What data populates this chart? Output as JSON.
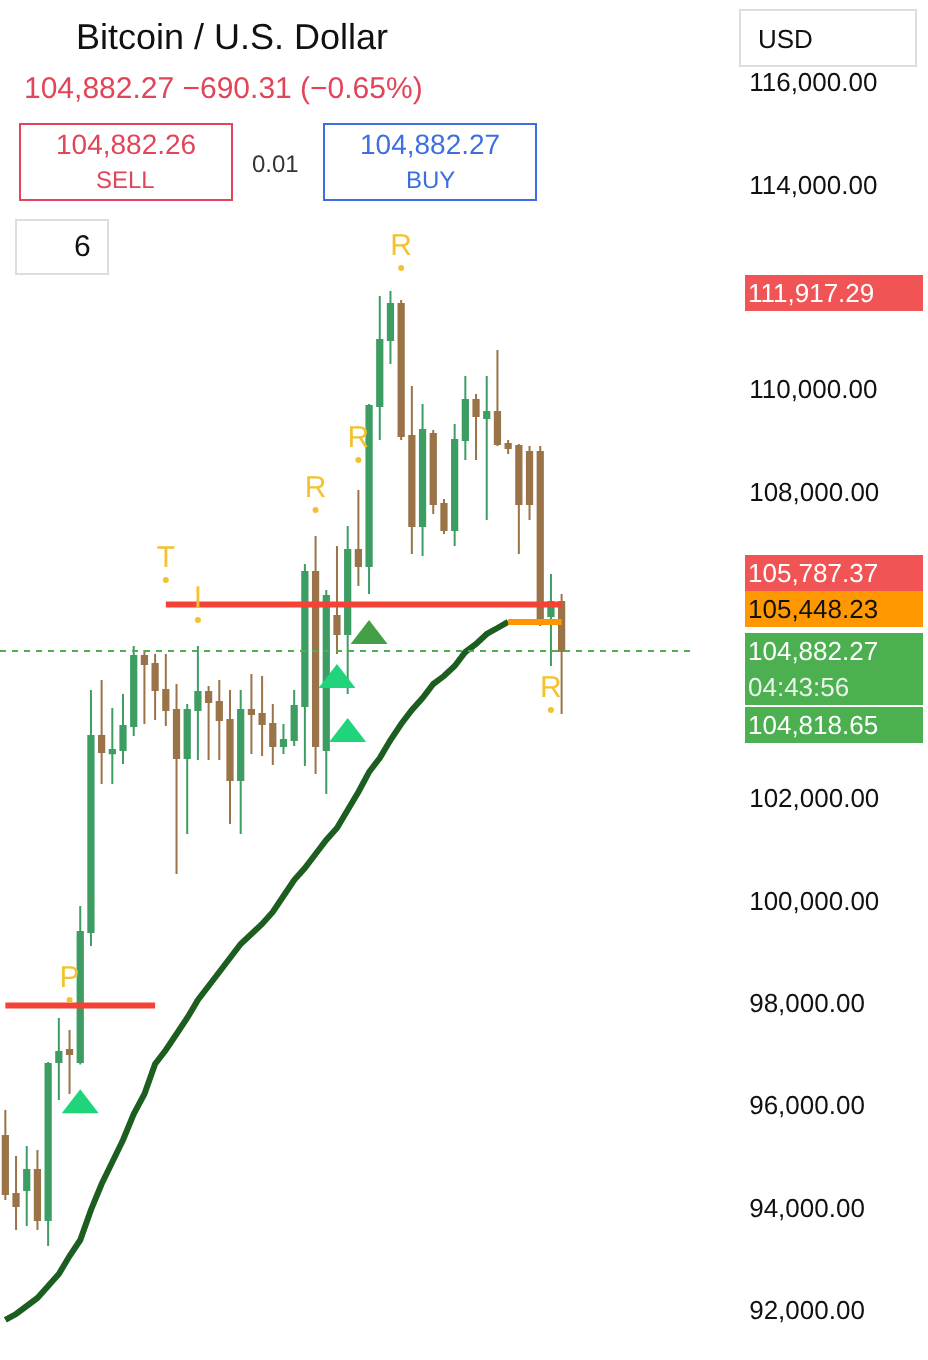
{
  "chart_data": {
    "type": "candlestick",
    "title": "Bitcoin / U.S. Dollar",
    "subtitle": "104,882.27 −690.31 (−0.65%)",
    "categories": [
      null,
      null,
      null,
      null,
      null,
      null,
      null,
      null,
      null,
      null,
      null,
      null,
      null,
      null,
      null,
      null,
      null,
      null,
      null,
      null,
      null,
      null,
      null,
      null,
      null,
      null,
      null,
      null,
      null,
      null,
      null,
      null,
      null,
      null,
      null,
      null,
      null,
      null,
      null,
      null,
      null,
      null,
      null,
      null,
      null,
      null,
      null,
      null,
      null,
      null,
      null,
      null,
      null
    ],
    "ohlc": [
      [
        95401,
        95909,
        94150,
        94267
      ],
      [
        94267,
        95010,
        93564,
        94033
      ],
      [
        94345,
        95205,
        93642,
        94736
      ],
      [
        94736,
        95127,
        93564,
        93759
      ],
      [
        93759,
        96847,
        93251,
        96808
      ],
      [
        96847,
        97707,
        96105,
        97043
      ],
      [
        97082,
        97473,
        96222,
        97004
      ],
      [
        96847,
        99896,
        96800,
        99388
      ],
      [
        99388,
        104118,
        99114,
        103219
      ],
      [
        103219,
        104313,
        102280,
        102906
      ],
      [
        102880,
        103766,
        102280,
        102945
      ],
      [
        102945,
        104040,
        102671,
        103414
      ],
      [
        103414,
        104978,
        103219,
        104782
      ],
      [
        104782,
        104900,
        103453,
        104626
      ],
      [
        104626,
        104822,
        103532,
        104118
      ],
      [
        104118,
        104822,
        103414,
        103727
      ],
      [
        103727,
        104235,
        100522,
        102789
      ],
      [
        102789,
        103844,
        101303,
        103727
      ],
      [
        103727,
        104978,
        102750,
        104079
      ],
      [
        104079,
        104196,
        102750,
        103883
      ],
      [
        103883,
        104313,
        102750,
        103532
      ],
      [
        103532,
        104118,
        101499,
        102359
      ],
      [
        102359,
        104118,
        101303,
        103727
      ],
      [
        103727,
        104430,
        102867,
        103649
      ],
      [
        103649,
        104391,
        102828,
        103453
      ],
      [
        103453,
        103844,
        102650,
        103023
      ],
      [
        103023,
        103453,
        102867,
        103141
      ],
      [
        103141,
        104118,
        103023,
        103805
      ],
      [
        103805,
        106580,
        102633,
        106424
      ],
      [
        106424,
        107128,
        102476,
        103023
      ],
      [
        102945,
        106073,
        102085,
        105955
      ],
      [
        105564,
        106932,
        104822,
        105212
      ],
      [
        105212,
        107323,
        104040,
        106854
      ],
      [
        106854,
        108027,
        106151,
        106541
      ],
      [
        106541,
        109708,
        105994,
        109669
      ],
      [
        109669,
        111819,
        109004,
        110959
      ],
      [
        110959,
        111917.29,
        110490,
        111663
      ],
      [
        111663,
        111741,
        109004,
        109083
      ],
      [
        109083,
        110060,
        106776,
        107323
      ],
      [
        107323,
        109708,
        106737,
        109200
      ],
      [
        109122,
        109200,
        107558,
        107754
      ],
      [
        107754,
        107850,
        107167,
        107245
      ],
      [
        107245,
        109317,
        106932,
        109004
      ],
      [
        109004,
        110256,
        108613,
        109786
      ],
      [
        109786,
        109903,
        108613,
        109474
      ],
      [
        109435,
        110256,
        107441,
        109552
      ],
      [
        109552,
        110763,
        108887,
        108926
      ],
      [
        108926,
        109004,
        108730,
        108848
      ],
      [
        108887,
        108926,
        106776,
        107754
      ],
      [
        108770,
        108887,
        107441,
        107754
      ],
      [
        108770,
        108887,
        105369,
        105408
      ],
      [
        105564,
        106385,
        104587,
        105838
      ],
      [
        105838,
        105994,
        103649,
        104882.27
      ]
    ],
    "colors": [
      "#9a7448",
      "#9a7448",
      "#3d9d63",
      "#9a7448",
      "#3d9d63",
      "#3d9d63",
      "#9a7448",
      "#3d9d63",
      "#3d9d63",
      "#9a7448",
      "#3d9d63",
      "#3d9d63",
      "#3d9d63",
      "#9a7448",
      "#9a7448",
      "#9a7448",
      "#9a7448",
      "#3d9d63",
      "#3d9d63",
      "#9a7448",
      "#9a7448",
      "#9a7448",
      "#3d9d63",
      "#9a7448",
      "#9a7448",
      "#9a7448",
      "#3d9d63",
      "#3d9d63",
      "#3d9d63",
      "#9a7448",
      "#3d9d63",
      "#9a7448",
      "#3d9d63",
      "#9a7448",
      "#3d9d63",
      "#3d9d63",
      "#3d9d63",
      "#9a7448",
      "#9a7448",
      "#3d9d63",
      "#9a7448",
      "#9a7448",
      "#3d9d63",
      "#3d9d63",
      "#9a7448",
      "#3d9d63",
      "#9a7448",
      "#9a7448",
      "#9a7448",
      "#9a7448",
      "#9a7448",
      "#3d9d63",
      "#9a7448"
    ],
    "series": [
      {
        "type": "line",
        "color": "#1b5e20",
        "values": [
          91805,
          91922,
          92078,
          92235,
          92469,
          92704,
          93055,
          93368,
          93955,
          94463,
          94893,
          95323,
          95831,
          96222,
          96808,
          97082,
          97394,
          97707,
          98059,
          98333,
          98607,
          98880,
          99154,
          99349,
          99544,
          99779,
          100092,
          100404,
          100639,
          100913,
          101186,
          101421,
          101773,
          102124,
          102515,
          102789,
          103141,
          103453,
          103727,
          103962,
          104235,
          104391,
          104587,
          104861,
          105017,
          105213,
          105330,
          105448.23,
          null,
          null,
          null,
          null,
          null
        ]
      },
      {
        "type": "line",
        "color": "#ff9800",
        "values": [
          null,
          null,
          null,
          null,
          null,
          null,
          null,
          null,
          null,
          null,
          null,
          null,
          null,
          null,
          null,
          null,
          null,
          null,
          null,
          null,
          null,
          null,
          null,
          null,
          null,
          null,
          null,
          null,
          null,
          null,
          null,
          null,
          null,
          null,
          null,
          null,
          null,
          null,
          null,
          null,
          null,
          null,
          null,
          null,
          null,
          null,
          null,
          105448.23,
          105448.23,
          105448.23,
          105448.23,
          105448.23,
          105448.23
        ]
      },
      {
        "type": "line",
        "color": "#f44336",
        "values": [
          97950,
          97950,
          97950,
          97950,
          97950,
          97950,
          97950,
          97950,
          97950,
          97950,
          97950,
          97950,
          97950,
          97950,
          97950,
          null,
          null,
          null,
          null,
          null,
          null,
          null,
          null,
          null,
          null,
          null,
          null,
          null,
          null,
          null,
          null,
          null,
          null,
          null,
          null,
          null,
          null,
          null,
          null,
          null,
          null,
          null,
          null,
          null,
          null,
          null,
          null,
          null,
          null,
          null,
          null,
          null,
          null
        ]
      },
      {
        "type": "line",
        "color": "#f44336",
        "values": [
          null,
          null,
          null,
          null,
          null,
          null,
          null,
          null,
          null,
          null,
          null,
          null,
          null,
          null,
          null,
          105787.37,
          105787.37,
          105787.37,
          105787.37,
          105787.37,
          105787.37,
          105787.37,
          105787.37,
          105787.37,
          105787.37,
          105787.37,
          105787.37,
          105787.37,
          105787.37,
          105787.37,
          105787.37,
          105787.37,
          105787.37,
          105787.37,
          105787.37,
          105787.37,
          105787.37,
          105787.37,
          105787.37,
          105787.37,
          105787.37,
          105787.37,
          105787.37,
          105787.37,
          105787.37,
          105787.37,
          105787.37,
          105787.37,
          105787.37,
          105787.37,
          105787.37,
          105787.37,
          105787.37
        ]
      },
      {
        "type": "scatter",
        "marker": "triangle",
        "color": "#1fd47a",
        "values": [
          null,
          null,
          null,
          null,
          null,
          null,
          null,
          96000,
          null,
          null,
          null,
          null,
          null,
          null,
          null,
          null,
          null,
          null,
          null,
          null,
          null,
          null,
          null,
          null,
          null,
          null,
          null,
          null,
          null,
          null,
          null,
          104313,
          103258,
          null,
          null,
          null,
          null,
          null,
          null,
          null,
          null,
          null,
          null,
          null,
          null,
          null,
          null,
          null,
          null,
          null,
          null,
          null,
          null
        ]
      },
      {
        "type": "scatter",
        "marker": "triangle",
        "color": "#43a047",
        "values": [
          null,
          null,
          null,
          null,
          null,
          null,
          null,
          null,
          null,
          null,
          null,
          null,
          null,
          null,
          null,
          null,
          null,
          null,
          null,
          null,
          null,
          null,
          null,
          null,
          null,
          null,
          null,
          null,
          null,
          null,
          null,
          null,
          null,
          null,
          105173,
          null,
          null,
          null,
          null,
          null,
          null,
          null,
          null,
          null,
          null,
          null,
          null,
          null,
          null,
          null,
          null,
          null,
          null
        ]
      },
      {
        "type": "scatter",
        "marker": "none",
        "color": "#f2c230",
        "values": [
          null,
          null,
          null,
          null,
          null,
          null,
          98059,
          null,
          null,
          null,
          null,
          null,
          null,
          null,
          null,
          106268,
          null,
          null,
          105486,
          null,
          null,
          null,
          null,
          null,
          null,
          null,
          null,
          null,
          null,
          107636,
          null,
          null,
          null,
          108613,
          null,
          null,
          null,
          112366,
          null,
          null,
          null,
          null,
          null,
          null,
          null,
          null,
          null,
          null,
          null,
          null,
          null,
          103727,
          null
        ],
        "value_labels": [
          null,
          null,
          null,
          null,
          null,
          null,
          "P",
          null,
          null,
          null,
          null,
          null,
          null,
          null,
          null,
          "T",
          null,
          null,
          "I",
          null,
          null,
          null,
          null,
          null,
          null,
          null,
          null,
          null,
          null,
          "R",
          null,
          null,
          null,
          "R",
          null,
          null,
          null,
          "R",
          null,
          null,
          null,
          null,
          null,
          null,
          null,
          null,
          null,
          null,
          null,
          null,
          null,
          "R",
          null
        ]
      }
    ],
    "ylim": [
      91023,
      117604
    ],
    "yticks": [
      {
        "value": 92000,
        "label": "92,000.00"
      },
      {
        "value": 94000,
        "label": "94,000.00"
      },
      {
        "value": 96000,
        "label": "96,000.00"
      },
      {
        "value": 98000,
        "label": "98,000.00"
      },
      {
        "value": 100000,
        "label": "100,000.00"
      },
      {
        "value": 102000,
        "label": "102,000.00"
      },
      {
        "value": 108000,
        "label": "108,000.00"
      },
      {
        "value": 110000,
        "label": "110,000.00"
      },
      {
        "value": 114000,
        "label": "114,000.00"
      },
      {
        "value": 116000,
        "label": "116,000.00"
      }
    ],
    "tick_labels": "y",
    "ref_lines": [
      {
        "axis": "y",
        "value": 104882.27,
        "label": null,
        "color": "#4caf50",
        "line_style": "dotted"
      }
    ],
    "annotations": [
      "104,882.26",
      "SELL",
      "0.01",
      "104,882.27",
      "BUY",
      "USD",
      "6",
      "111,917.29",
      "105,787.37",
      "105,448.23",
      "104,882.27",
      "04:43:56",
      "104,818.65"
    ]
  }
}
